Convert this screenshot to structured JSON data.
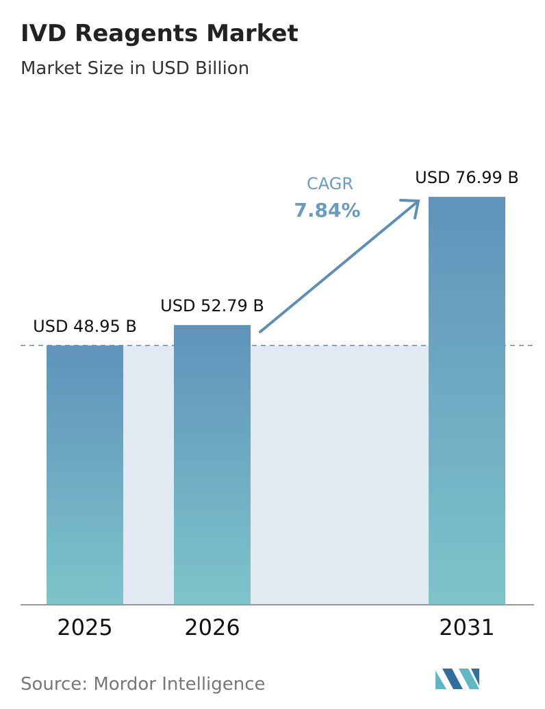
{
  "chart_data": {
    "type": "bar",
    "title": "IVD Reagents Market",
    "subtitle": "Market Size in USD Billion",
    "categories": [
      "2025",
      "2026",
      "2031"
    ],
    "values": [
      48.95,
      52.79,
      76.99
    ],
    "value_labels": [
      "USD 48.95 B",
      "USD 52.79 B",
      "USD 76.99 B"
    ],
    "color": "#5f93bb",
    "ylim": [
      0,
      77
    ],
    "annotation": {
      "label": "CAGR",
      "value": "7.84%"
    },
    "source": "Source: Mordor Intelligence"
  }
}
